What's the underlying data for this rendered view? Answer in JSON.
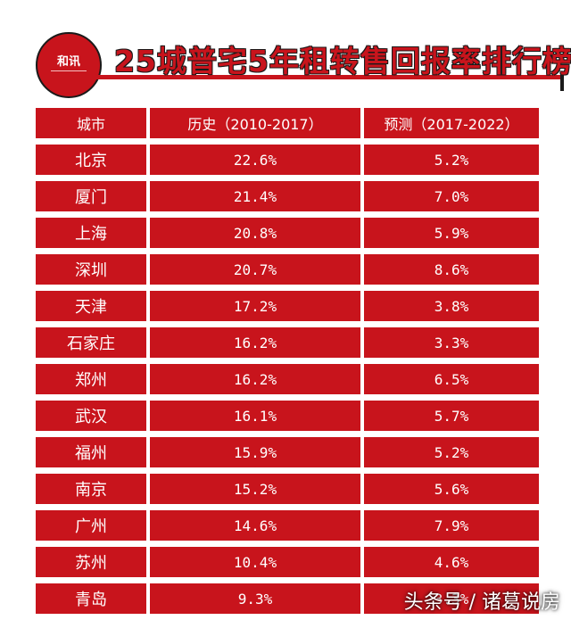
{
  "title": {
    "text": "25城普宅5年租转售回报率排行榜",
    "logo_text": "和讯"
  },
  "table": {
    "headers": [
      "城市",
      "历史（2010-2017）",
      "预测（2017-2022）"
    ],
    "rows": [
      {
        "city": "北京",
        "history": "22.6%",
        "forecast": "5.2%"
      },
      {
        "city": "厦门",
        "history": "21.4%",
        "forecast": "7.0%"
      },
      {
        "city": "上海",
        "history": "20.8%",
        "forecast": "5.9%"
      },
      {
        "city": "深圳",
        "history": "20.7%",
        "forecast": "8.6%"
      },
      {
        "city": "天津",
        "history": "17.2%",
        "forecast": "3.8%"
      },
      {
        "city": "石家庄",
        "history": "16.2%",
        "forecast": "3.3%"
      },
      {
        "city": "郑州",
        "history": "16.2%",
        "forecast": "6.5%"
      },
      {
        "city": "武汉",
        "history": "16.1%",
        "forecast": "5.7%"
      },
      {
        "city": "福州",
        "history": "15.9%",
        "forecast": "5.2%"
      },
      {
        "city": "南京",
        "history": "15.2%",
        "forecast": "5.6%"
      },
      {
        "city": "广州",
        "history": "14.6%",
        "forecast": "7.9%"
      },
      {
        "city": "苏州",
        "history": "10.4%",
        "forecast": "4.6%"
      },
      {
        "city": "青岛",
        "history": "9.3%",
        "forecast": "3.3%"
      }
    ]
  },
  "watermark": "头条号 / 诸葛说房",
  "colors": {
    "accent": "#c8141c",
    "text_on_accent": "#ffffff"
  }
}
